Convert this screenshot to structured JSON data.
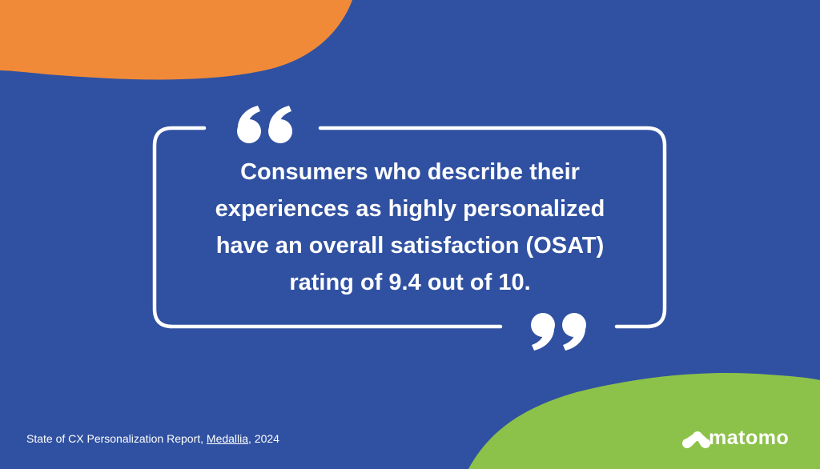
{
  "quote": {
    "lines": [
      "Consumers who describe their",
      "experiences as highly personalized",
      "have an overall satisfaction (OSAT)",
      "rating of 9.4 out of 10."
    ]
  },
  "source": {
    "before": "State of CX Personalization Report, ",
    "link": "Medallia",
    "after": ", 2024"
  },
  "logo": "matomo"
}
